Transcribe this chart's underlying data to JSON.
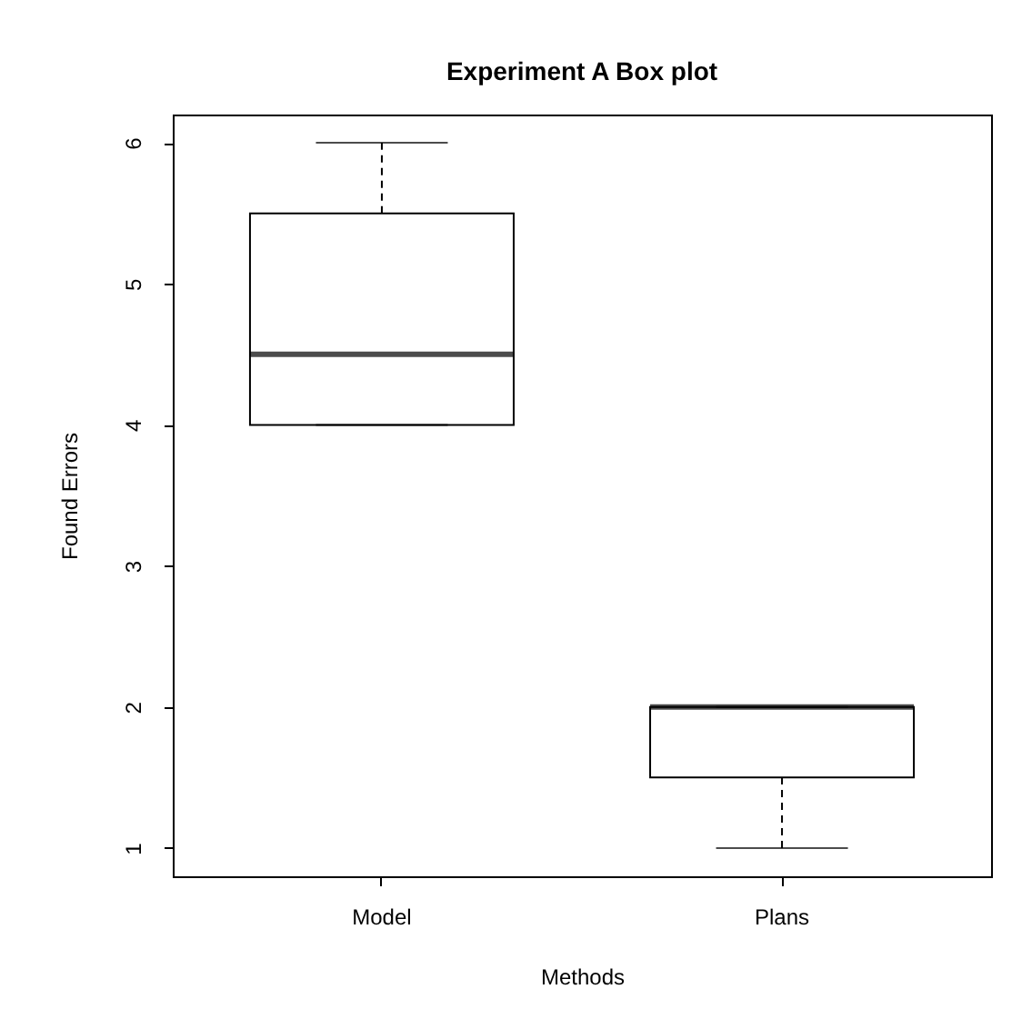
{
  "chart_data": {
    "type": "box",
    "title": "Experiment A Box plot",
    "xlabel": "Methods",
    "ylabel": "Found Errors",
    "categories": [
      "Model",
      "Plans"
    ],
    "boxes": [
      {
        "low": 4,
        "q1": 4,
        "median": 4.5,
        "q3": 5.5,
        "high": 6
      },
      {
        "low": 1,
        "q1": 1.5,
        "median": 2,
        "q3": 2,
        "high": 2
      }
    ],
    "ylim": [
      0.8,
      6.2
    ],
    "yticks": [
      1,
      2,
      3,
      4,
      5,
      6
    ]
  }
}
